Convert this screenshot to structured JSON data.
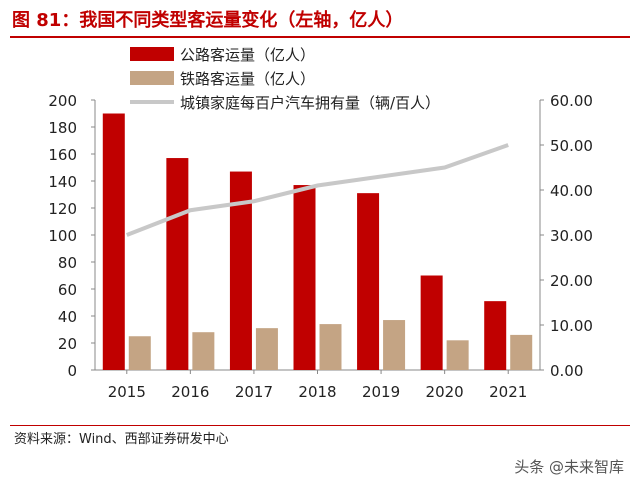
{
  "title": "图 81：我国不同类型客运量变化（左轴，亿人）",
  "source": "资料来源：Wind、西部证券研发中心",
  "watermark": "头条 @未来智库",
  "chart_data": {
    "type": "bar",
    "categories": [
      "2015",
      "2016",
      "2017",
      "2018",
      "2019",
      "2020",
      "2021"
    ],
    "series": [
      {
        "name": "公路客运量（亿人）",
        "type": "bar",
        "axis": "left",
        "color": "#c00000",
        "values": [
          190,
          157,
          147,
          137,
          131,
          70,
          51
        ]
      },
      {
        "name": "铁路客运量（亿人）",
        "type": "bar",
        "axis": "left",
        "color": "#c4a484",
        "values": [
          25,
          28,
          31,
          34,
          37,
          22,
          26
        ]
      },
      {
        "name": "城镇家庭每百户汽车拥有量（辆/百人）",
        "type": "line",
        "axis": "right",
        "color": "#c8c8c8",
        "values": [
          30.0,
          35.5,
          37.5,
          41.0,
          43.0,
          45.0,
          50.0
        ]
      }
    ],
    "left_axis": {
      "ylim": [
        0,
        200
      ],
      "ticks": [
        "0",
        "20",
        "40",
        "60",
        "80",
        "100",
        "120",
        "140",
        "160",
        "180",
        "200"
      ]
    },
    "right_axis": {
      "ylim": [
        0,
        60
      ],
      "ticks": [
        "0.00",
        "10.00",
        "20.00",
        "30.00",
        "40.00",
        "50.00",
        "60.00"
      ]
    },
    "legend": "top-left",
    "grid": false
  }
}
